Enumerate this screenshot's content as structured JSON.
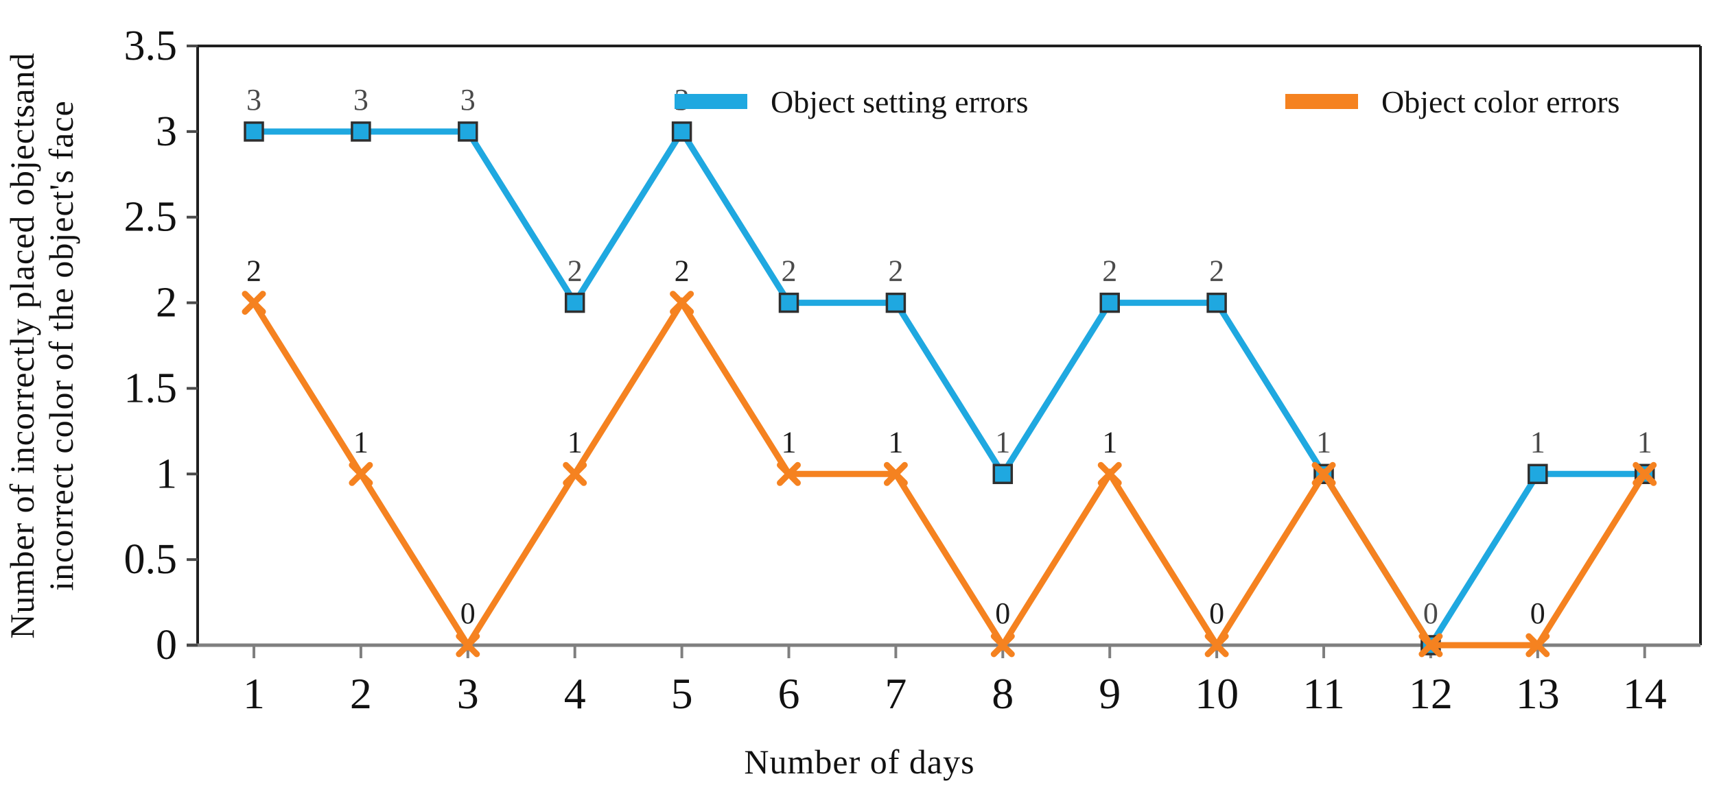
{
  "chart_data": {
    "type": "line",
    "title": "",
    "xlabel": "Number of days",
    "ylabel_line1": "Number of incorrectly placed objectsand",
    "ylabel_line2": "incorrect color of the object's face",
    "x": [
      1,
      2,
      3,
      4,
      5,
      6,
      7,
      8,
      9,
      10,
      11,
      12,
      13,
      14
    ],
    "ylim": [
      0,
      3.5
    ],
    "y_ticks": [
      0,
      0.5,
      1,
      1.5,
      2,
      2.5,
      3,
      3.5
    ],
    "y_tick_labels": [
      "0",
      "0.5",
      "1",
      "1.5",
      "2",
      "2.5",
      "3",
      "3.5"
    ],
    "grid": "off",
    "legend_position": "top-inside",
    "series": [
      {
        "name": "Object setting errors",
        "color": "#1FA8E0",
        "marker": "square",
        "marker_edge_color": "#2f2f2f",
        "values": [
          3,
          3,
          3,
          2,
          3,
          2,
          2,
          1,
          2,
          2,
          1,
          0,
          1,
          1
        ],
        "point_labels": [
          "3",
          "3",
          "3",
          "2",
          "3",
          "2",
          "2",
          "1",
          "2",
          "2",
          "1",
          "0",
          "1",
          "1"
        ],
        "label_color": "#4a4a4a"
      },
      {
        "name": "Object color errors",
        "color": "#F58220",
        "marker": "x",
        "values": [
          2,
          1,
          0,
          1,
          2,
          1,
          1,
          0,
          1,
          0,
          1,
          0,
          0,
          1
        ],
        "point_labels": [
          "2",
          "1",
          "0",
          "1",
          "2",
          "1",
          "1",
          "0",
          "1",
          "0",
          null,
          null,
          "0",
          null
        ],
        "label_color": "#1c1c1c"
      }
    ]
  },
  "legend": {
    "items": [
      {
        "label": "Object setting errors",
        "color": "#1FA8E0"
      },
      {
        "label": "Object color errors",
        "color": "#F58220"
      }
    ]
  },
  "axes": {
    "x_title": "Number of days",
    "y_title_line1": "Number of incorrectly placed objectsand",
    "y_title_line2": "incorrect color of the object's face",
    "spine_color": "#1f1f1f",
    "bottom_axis_color": "#7f7f7f",
    "tick_label_color": "#111111"
  }
}
